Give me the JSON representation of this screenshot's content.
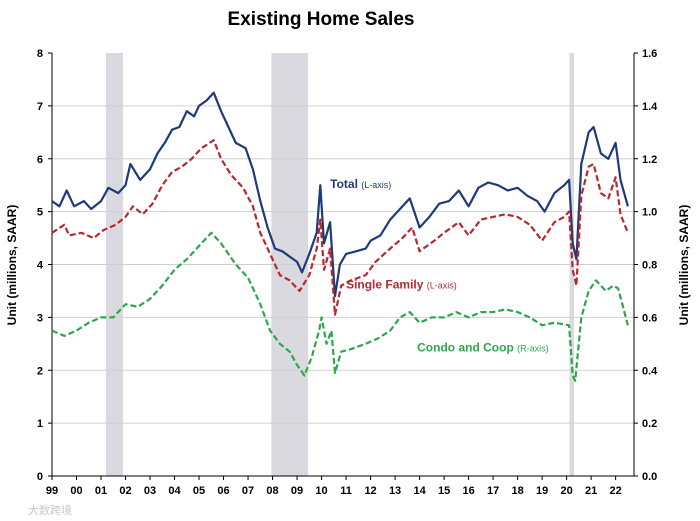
{
  "watermark": "大数跨境",
  "chart_data": {
    "type": "line",
    "title": "Existing Home Sales",
    "ylabel_left": "Unit (millions, SAAR)",
    "ylabel_right": "Unit (millions, SAAR)",
    "ylim_left": [
      0,
      8
    ],
    "ylim_right": [
      0,
      1.6
    ],
    "yticks_left": [
      "0",
      "1",
      "2",
      "3",
      "4",
      "5",
      "6",
      "7",
      "8"
    ],
    "yticks_right": [
      "0.0",
      "0.2",
      "0.4",
      "0.6",
      "0.8",
      "1.0",
      "1.2",
      "1.4",
      "1.6"
    ],
    "xlim": [
      1999.0,
      2022.75
    ],
    "xticks": [
      {
        "x": 1999,
        "label": "99"
      },
      {
        "x": 2000,
        "label": "00"
      },
      {
        "x": 2001,
        "label": "01"
      },
      {
        "x": 2002,
        "label": "02"
      },
      {
        "x": 2003,
        "label": "03"
      },
      {
        "x": 2004,
        "label": "04"
      },
      {
        "x": 2005,
        "label": "05"
      },
      {
        "x": 2006,
        "label": "06"
      },
      {
        "x": 2007,
        "label": "07"
      },
      {
        "x": 2008,
        "label": "08"
      },
      {
        "x": 2009,
        "label": "09"
      },
      {
        "x": 2010,
        "label": "10"
      },
      {
        "x": 2011,
        "label": "11"
      },
      {
        "x": 2012,
        "label": "12"
      },
      {
        "x": 2013,
        "label": "13"
      },
      {
        "x": 2014,
        "label": "14"
      },
      {
        "x": 2015,
        "label": "15"
      },
      {
        "x": 2016,
        "label": "16"
      },
      {
        "x": 2017,
        "label": "17"
      },
      {
        "x": 2018,
        "label": "18"
      },
      {
        "x": 2019,
        "label": "19"
      },
      {
        "x": 2020,
        "label": "20"
      },
      {
        "x": 2021,
        "label": "21"
      },
      {
        "x": 2022,
        "label": "22"
      }
    ],
    "recessions": [
      [
        2001.2,
        2001.9
      ],
      [
        2007.95,
        2009.45
      ],
      [
        2020.12,
        2020.3
      ]
    ],
    "grid": "horizontal",
    "series": [
      {
        "name": "Total",
        "axis_note": "(L-axis)",
        "axis": "left",
        "color": "#1f3a7a",
        "style": "solid",
        "points": [
          [
            1999.0,
            5.2
          ],
          [
            1999.3,
            5.1
          ],
          [
            1999.6,
            5.4
          ],
          [
            1999.9,
            5.1
          ],
          [
            2000.3,
            5.2
          ],
          [
            2000.6,
            5.05
          ],
          [
            2001.0,
            5.2
          ],
          [
            2001.3,
            5.45
          ],
          [
            2001.7,
            5.35
          ],
          [
            2002.0,
            5.5
          ],
          [
            2002.2,
            5.9
          ],
          [
            2002.6,
            5.6
          ],
          [
            2003.0,
            5.8
          ],
          [
            2003.3,
            6.1
          ],
          [
            2003.6,
            6.3
          ],
          [
            2003.9,
            6.55
          ],
          [
            2004.2,
            6.6
          ],
          [
            2004.5,
            6.9
          ],
          [
            2004.8,
            6.8
          ],
          [
            2005.0,
            7.0
          ],
          [
            2005.3,
            7.1
          ],
          [
            2005.6,
            7.25
          ],
          [
            2005.9,
            6.9
          ],
          [
            2006.2,
            6.6
          ],
          [
            2006.5,
            6.3
          ],
          [
            2006.9,
            6.2
          ],
          [
            2007.2,
            5.8
          ],
          [
            2007.5,
            5.2
          ],
          [
            2007.8,
            4.7
          ],
          [
            2008.1,
            4.3
          ],
          [
            2008.4,
            4.25
          ],
          [
            2008.7,
            4.15
          ],
          [
            2009.0,
            4.05
          ],
          [
            2009.2,
            3.85
          ],
          [
            2009.5,
            4.2
          ],
          [
            2009.8,
            4.6
          ],
          [
            2009.95,
            5.5
          ],
          [
            2010.1,
            4.4
          ],
          [
            2010.35,
            4.8
          ],
          [
            2010.55,
            3.4
          ],
          [
            2010.75,
            4.0
          ],
          [
            2011.0,
            4.2
          ],
          [
            2011.4,
            4.25
          ],
          [
            2011.8,
            4.3
          ],
          [
            2012.0,
            4.45
          ],
          [
            2012.4,
            4.55
          ],
          [
            2012.8,
            4.85
          ],
          [
            2013.2,
            5.05
          ],
          [
            2013.6,
            5.25
          ],
          [
            2014.0,
            4.7
          ],
          [
            2014.4,
            4.9
          ],
          [
            2014.8,
            5.15
          ],
          [
            2015.2,
            5.2
          ],
          [
            2015.6,
            5.4
          ],
          [
            2016.0,
            5.1
          ],
          [
            2016.4,
            5.45
          ],
          [
            2016.8,
            5.55
          ],
          [
            2017.2,
            5.5
          ],
          [
            2017.6,
            5.4
          ],
          [
            2018.0,
            5.45
          ],
          [
            2018.4,
            5.3
          ],
          [
            2018.8,
            5.2
          ],
          [
            2019.1,
            5.0
          ],
          [
            2019.5,
            5.35
          ],
          [
            2019.9,
            5.5
          ],
          [
            2020.1,
            5.6
          ],
          [
            2020.25,
            4.4
          ],
          [
            2020.4,
            4.1
          ],
          [
            2020.6,
            5.9
          ],
          [
            2020.9,
            6.5
          ],
          [
            2021.1,
            6.6
          ],
          [
            2021.4,
            6.1
          ],
          [
            2021.7,
            6.0
          ],
          [
            2022.0,
            6.3
          ],
          [
            2022.2,
            5.6
          ],
          [
            2022.5,
            5.1
          ]
        ]
      },
      {
        "name": "Single Family",
        "axis_note": "(L-axis)",
        "axis": "left",
        "color": "#b8282f",
        "style": "dashed",
        "points": [
          [
            1999.0,
            4.6
          ],
          [
            1999.5,
            4.75
          ],
          [
            1999.7,
            4.55
          ],
          [
            2000.2,
            4.6
          ],
          [
            2000.7,
            4.5
          ],
          [
            2001.1,
            4.65
          ],
          [
            2001.6,
            4.75
          ],
          [
            2002.0,
            4.9
          ],
          [
            2002.3,
            5.1
          ],
          [
            2002.7,
            4.95
          ],
          [
            2003.1,
            5.15
          ],
          [
            2003.5,
            5.5
          ],
          [
            2003.9,
            5.75
          ],
          [
            2004.3,
            5.85
          ],
          [
            2004.7,
            6.0
          ],
          [
            2005.1,
            6.2
          ],
          [
            2005.6,
            6.35
          ],
          [
            2005.9,
            6.0
          ],
          [
            2006.3,
            5.7
          ],
          [
            2006.8,
            5.45
          ],
          [
            2007.2,
            5.1
          ],
          [
            2007.5,
            4.6
          ],
          [
            2007.9,
            4.2
          ],
          [
            2008.3,
            3.8
          ],
          [
            2008.7,
            3.7
          ],
          [
            2009.1,
            3.5
          ],
          [
            2009.5,
            3.8
          ],
          [
            2009.8,
            4.3
          ],
          [
            2009.95,
            4.85
          ],
          [
            2010.1,
            3.9
          ],
          [
            2010.35,
            4.3
          ],
          [
            2010.55,
            3.05
          ],
          [
            2010.8,
            3.6
          ],
          [
            2011.2,
            3.7
          ],
          [
            2011.8,
            3.8
          ],
          [
            2012.2,
            4.05
          ],
          [
            2012.8,
            4.3
          ],
          [
            2013.3,
            4.5
          ],
          [
            2013.7,
            4.7
          ],
          [
            2014.0,
            4.25
          ],
          [
            2014.6,
            4.45
          ],
          [
            2015.0,
            4.6
          ],
          [
            2015.6,
            4.8
          ],
          [
            2016.0,
            4.55
          ],
          [
            2016.5,
            4.85
          ],
          [
            2017.0,
            4.9
          ],
          [
            2017.5,
            4.95
          ],
          [
            2018.0,
            4.9
          ],
          [
            2018.5,
            4.75
          ],
          [
            2019.0,
            4.45
          ],
          [
            2019.5,
            4.8
          ],
          [
            2019.9,
            4.9
          ],
          [
            2020.1,
            5.0
          ],
          [
            2020.25,
            3.9
          ],
          [
            2020.4,
            3.6
          ],
          [
            2020.6,
            5.3
          ],
          [
            2020.9,
            5.85
          ],
          [
            2021.1,
            5.9
          ],
          [
            2021.4,
            5.35
          ],
          [
            2021.7,
            5.25
          ],
          [
            2022.0,
            5.65
          ],
          [
            2022.2,
            4.95
          ],
          [
            2022.5,
            4.6
          ]
        ]
      },
      {
        "name": "Condo and Coop",
        "axis_note": "(R-axis)",
        "axis": "right",
        "color": "#2ca84a",
        "style": "dashed",
        "points": [
          [
            1999.0,
            0.55
          ],
          [
            1999.5,
            0.53
          ],
          [
            2000.0,
            0.55
          ],
          [
            2000.5,
            0.58
          ],
          [
            2001.0,
            0.6
          ],
          [
            2001.5,
            0.6
          ],
          [
            2002.0,
            0.65
          ],
          [
            2002.5,
            0.64
          ],
          [
            2003.0,
            0.67
          ],
          [
            2003.5,
            0.72
          ],
          [
            2004.0,
            0.78
          ],
          [
            2004.5,
            0.82
          ],
          [
            2005.0,
            0.87
          ],
          [
            2005.5,
            0.92
          ],
          [
            2005.9,
            0.88
          ],
          [
            2006.5,
            0.8
          ],
          [
            2007.0,
            0.75
          ],
          [
            2007.5,
            0.65
          ],
          [
            2007.9,
            0.55
          ],
          [
            2008.3,
            0.5
          ],
          [
            2008.7,
            0.47
          ],
          [
            2009.0,
            0.42
          ],
          [
            2009.3,
            0.38
          ],
          [
            2009.6,
            0.45
          ],
          [
            2009.9,
            0.55
          ],
          [
            2010.0,
            0.6
          ],
          [
            2010.2,
            0.5
          ],
          [
            2010.4,
            0.55
          ],
          [
            2010.55,
            0.39
          ],
          [
            2010.8,
            0.47
          ],
          [
            2011.2,
            0.48
          ],
          [
            2011.8,
            0.5
          ],
          [
            2012.3,
            0.52
          ],
          [
            2012.8,
            0.55
          ],
          [
            2013.2,
            0.6
          ],
          [
            2013.6,
            0.62
          ],
          [
            2014.0,
            0.58
          ],
          [
            2014.5,
            0.6
          ],
          [
            2015.0,
            0.6
          ],
          [
            2015.5,
            0.62
          ],
          [
            2016.0,
            0.6
          ],
          [
            2016.5,
            0.62
          ],
          [
            2017.0,
            0.62
          ],
          [
            2017.5,
            0.63
          ],
          [
            2018.0,
            0.62
          ],
          [
            2018.5,
            0.6
          ],
          [
            2019.0,
            0.57
          ],
          [
            2019.5,
            0.58
          ],
          [
            2020.1,
            0.57
          ],
          [
            2020.25,
            0.38
          ],
          [
            2020.35,
            0.36
          ],
          [
            2020.6,
            0.6
          ],
          [
            2020.9,
            0.7
          ],
          [
            2021.2,
            0.74
          ],
          [
            2021.6,
            0.7
          ],
          [
            2021.9,
            0.72
          ],
          [
            2022.1,
            0.71
          ],
          [
            2022.5,
            0.57
          ]
        ]
      }
    ]
  }
}
